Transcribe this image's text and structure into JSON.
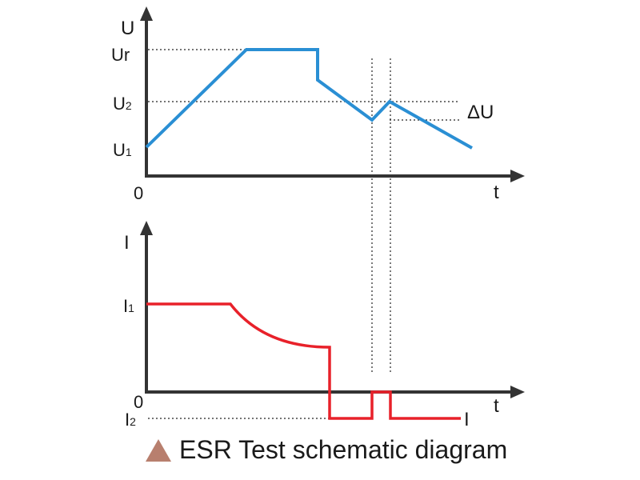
{
  "top_chart": {
    "y_axis_label": "U",
    "x_axis_label": "t",
    "origin_label": "0",
    "levels": {
      "ur": "Ur",
      "u2_main": "U",
      "u2_sub": "2",
      "u1_main": "U",
      "u1_sub": "1"
    },
    "delta_label": "ΔU",
    "line_color": "#2a8fd4"
  },
  "bottom_chart": {
    "y_axis_label": "I",
    "x_axis_label": "t",
    "origin_label": "0",
    "levels": {
      "i1_main": "I",
      "i1_sub": "1",
      "i2_main": "I",
      "i2_sub": "2"
    },
    "end_label": "I",
    "line_color": "#e8212a"
  },
  "caption": {
    "text": "ESR Test schematic diagram",
    "icon": "triangle-icon",
    "icon_color": "#b87f6e"
  }
}
